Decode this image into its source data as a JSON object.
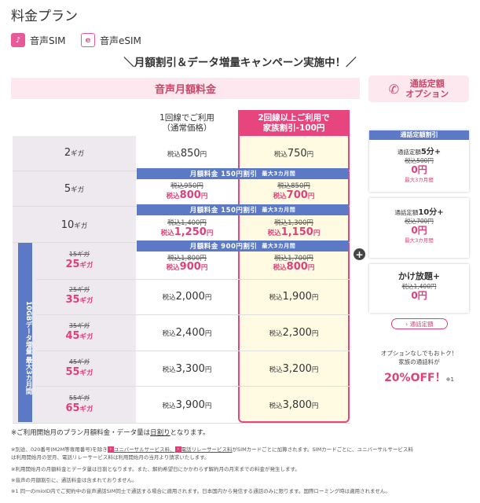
{
  "page_title": "料金プラン",
  "tabs": [
    {
      "label": "音声SIM",
      "icon": "sim-icon"
    },
    {
      "label": "音声eSIM",
      "icon": "esim-icon"
    }
  ],
  "campaign": "＼月額割引＆データ増量キャンペーン実施中！／",
  "monthly_header": "音声月額料金",
  "voice_option_header": {
    "line1": "通話定額",
    "line2": "オプション"
  },
  "col_single": {
    "line1": "1回線でご利用",
    "line2": "（通常価格）"
  },
  "col_family": {
    "line1": "2回線以上ご利用で",
    "line2": "家族割引-100円"
  },
  "tax_prefix": "税込",
  "yen": "円",
  "giga": "ギガ",
  "rows": [
    {
      "gb": "2",
      "single": "850",
      "family": "750"
    },
    {
      "gb": "5",
      "single_old": "税込950円",
      "single_new": "800",
      "family_old": "税込850円",
      "family_new": "700"
    },
    {
      "gb": "10",
      "single_old": "税込1,400円",
      "single_new": "1,250",
      "family_old": "税込1,300円",
      "family_new": "1,150"
    }
  ],
  "discount_bars": [
    {
      "main": "月額料金 150円割引",
      "sub": "最大3カ月間"
    },
    {
      "main": "月額料金 150円割引",
      "sub": "最大3カ月間"
    },
    {
      "main": "月額料金 900円割引",
      "sub": "最大3カ月間"
    }
  ],
  "bonus_label": "10GBデータ増量 最大3カ月間",
  "bonus_rows": [
    {
      "old_gb": "15ギガ",
      "new_gb": "25",
      "single_old": "税込1,800円",
      "single_new": "900",
      "family_old": "税込1,700円",
      "family_new": "800"
    },
    {
      "old_gb": "25ギガ",
      "new_gb": "35",
      "single": "2,000",
      "family": "1,900"
    },
    {
      "old_gb": "35ギガ",
      "new_gb": "45",
      "single": "2,400",
      "family": "2,300"
    },
    {
      "old_gb": "45ギガ",
      "new_gb": "55",
      "single": "3,300",
      "family": "3,200"
    },
    {
      "old_gb": "55ギガ",
      "new_gb": "65",
      "single": "3,900",
      "family": "3,800"
    }
  ],
  "options": [
    {
      "tag": "通話定額割引",
      "title_prefix": "通話定額",
      "title_main": "5分+",
      "old": "税込500円",
      "new": "0円",
      "note": "最大3カ月間"
    },
    {
      "title_prefix": "通話定額",
      "title_main": "10分+",
      "old": "税込700円",
      "new": "0円",
      "note": "最大3カ月間"
    },
    {
      "title_main": "かけ放題+",
      "old": "税込1,400円",
      "new": "0円"
    }
  ],
  "opt_link": "› 通話定額",
  "promo": {
    "line1": "オプションなしでもおトク！",
    "line2": "家族の通話料が",
    "line3": "20%OFF！",
    "suffix": "※1"
  },
  "notes": {
    "main_pre": "※ご利用開始月のプラン月額料金・データ量は",
    "main_u": "日割り",
    "main_post": "となります。",
    "fine1a": "※別途、020番号(M2M等専用番号)を除き",
    "fine1b": "ユニバーサルサービス料、",
    "fine1c": "電話リレーサービス料",
    "fine1d": "がSIMカードごとに加算されます。SIMカードごとに、ユニバーサルサービス料",
    "fine1e": "は利用開始月の翌月、電話リレーサービス料は利用開始月の当月より請求いたします。",
    "fine2": "※利用開始月の月額料金とデータ量は日割となります。また、解約希望日にかかわらず解約月の月末までの料金が発生します。",
    "fine3": "※音声の月額割引に、通話料金は含まれておりません。",
    "fine4": "※1 同一のmioID内でご契約中の音声通話SIM同士で通話する場合に適用されます。日本国内から発信する通話のみに限ります。国際ローミング時は適用されません。"
  }
}
